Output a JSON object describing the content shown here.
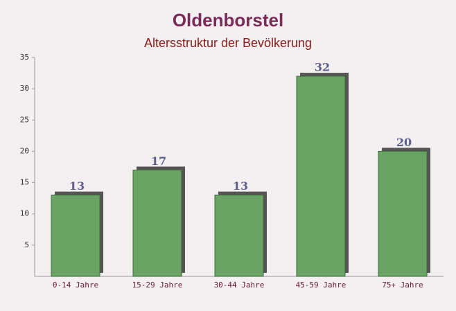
{
  "chart_data": {
    "type": "bar",
    "title": "Oldenborstel",
    "subtitle": "Altersstruktur der Bevölkerung",
    "categories": [
      "0-14 Jahre",
      "15-29 Jahre",
      "30-44 Jahre",
      "45-59 Jahre",
      "75+ Jahre"
    ],
    "values": [
      13,
      17,
      13,
      32,
      20
    ],
    "color": "#6aa464",
    "ylim": [
      0,
      35
    ],
    "yticks": [
      5,
      10,
      15,
      20,
      25,
      30,
      35
    ]
  }
}
